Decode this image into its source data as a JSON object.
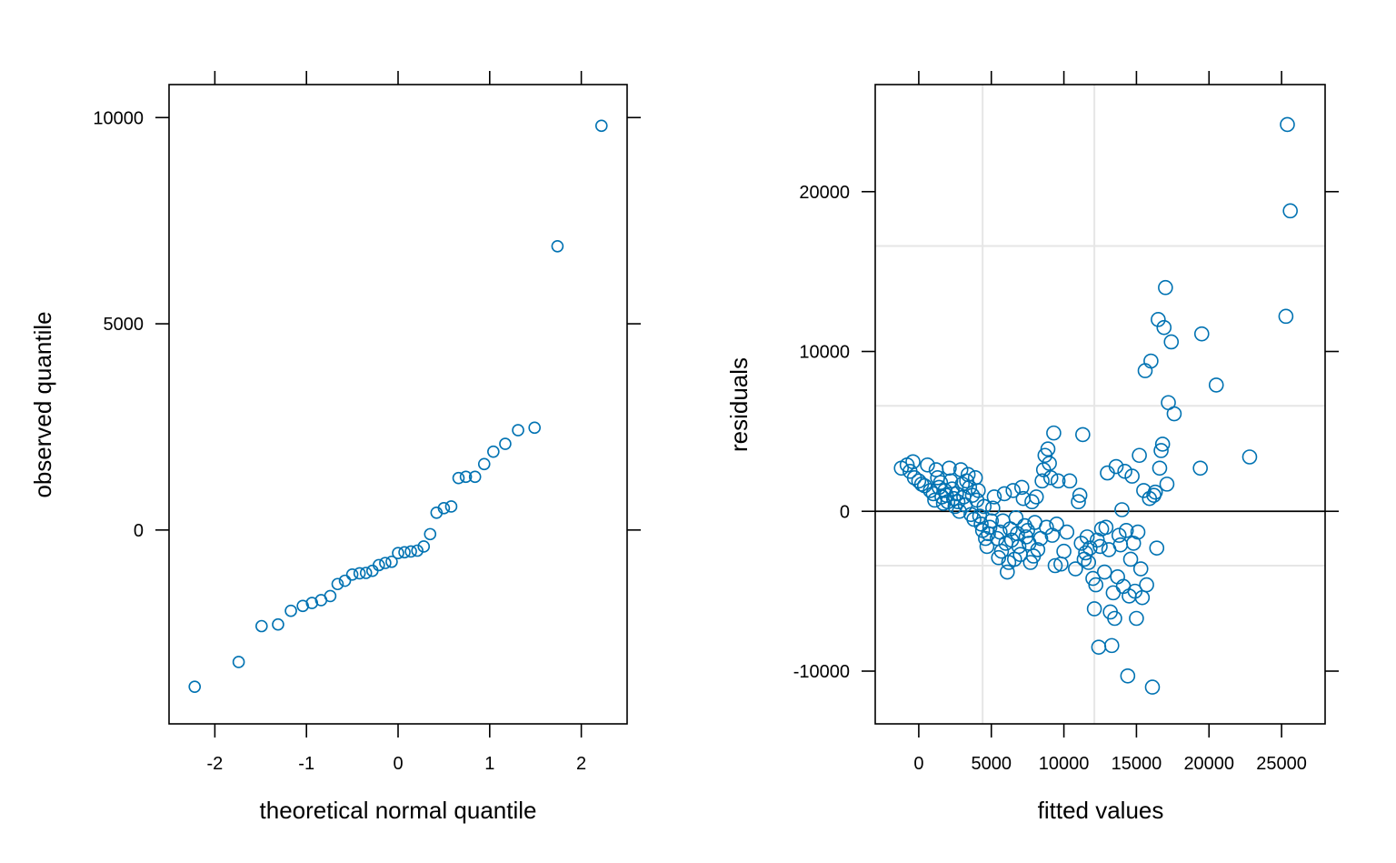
{
  "chart_data": [
    {
      "type": "scatter",
      "title": "",
      "xlabel": "theoretical normal quantile",
      "ylabel": "observed quantile",
      "xlim": [
        -2.5,
        2.5
      ],
      "ylim": [
        -4700,
        10800
      ],
      "xticks": [
        -2,
        -1,
        0,
        1,
        2
      ],
      "xtick_labels": [
        "-2",
        "-1",
        "0",
        "1",
        "2"
      ],
      "yticks": [
        0,
        5000,
        10000
      ],
      "ytick_labels": [
        "0",
        "5000",
        "10000"
      ],
      "grid": false,
      "color": "#0072B2",
      "points": [
        [
          -2.22,
          -3800
        ],
        [
          -1.74,
          -3200
        ],
        [
          -1.49,
          -2330
        ],
        [
          -1.31,
          -2290
        ],
        [
          -1.17,
          -1960
        ],
        [
          -1.04,
          -1840
        ],
        [
          -0.94,
          -1770
        ],
        [
          -0.84,
          -1700
        ],
        [
          -0.74,
          -1600
        ],
        [
          -0.66,
          -1310
        ],
        [
          -0.58,
          -1230
        ],
        [
          -0.5,
          -1080
        ],
        [
          -0.42,
          -1050
        ],
        [
          -0.35,
          -1040
        ],
        [
          -0.28,
          -990
        ],
        [
          -0.21,
          -850
        ],
        [
          -0.14,
          -800
        ],
        [
          -0.07,
          -770
        ],
        [
          0.0,
          -560
        ],
        [
          0.07,
          -540
        ],
        [
          0.14,
          -520
        ],
        [
          0.21,
          -500
        ],
        [
          0.28,
          -400
        ],
        [
          0.35,
          -100
        ],
        [
          0.42,
          420
        ],
        [
          0.5,
          530
        ],
        [
          0.58,
          570
        ],
        [
          0.66,
          1260
        ],
        [
          0.74,
          1290
        ],
        [
          0.84,
          1290
        ],
        [
          0.94,
          1600
        ],
        [
          1.04,
          1900
        ],
        [
          1.17,
          2090
        ],
        [
          1.31,
          2420
        ],
        [
          1.49,
          2480
        ],
        [
          1.74,
          6880
        ],
        [
          2.22,
          9800
        ]
      ]
    },
    {
      "type": "scatter",
      "title": "",
      "xlabel": "fitted values",
      "ylabel": "residuals",
      "xlim": [
        -3000,
        28000
      ],
      "ylim": [
        -13300,
        26700
      ],
      "xticks": [
        0,
        5000,
        10000,
        15000,
        20000,
        25000
      ],
      "xtick_labels": [
        "0",
        "5000",
        "10000",
        "15000",
        "20000",
        "25000"
      ],
      "yticks": [
        -10000,
        0,
        10000,
        20000
      ],
      "ytick_labels": [
        "-10000",
        "0",
        "10000",
        "20000"
      ],
      "grid": true,
      "reference_line_y": 0,
      "color": "#0072B2",
      "points": [
        [
          -1200,
          2700
        ],
        [
          -800,
          2900
        ],
        [
          -600,
          2500
        ],
        [
          -400,
          3100
        ],
        [
          -300,
          2100
        ],
        [
          0,
          1900
        ],
        [
          200,
          1700
        ],
        [
          400,
          1600
        ],
        [
          600,
          2900
        ],
        [
          800,
          1300
        ],
        [
          1000,
          1100
        ],
        [
          1100,
          700
        ],
        [
          1200,
          2600
        ],
        [
          1300,
          2100
        ],
        [
          1400,
          1500
        ],
        [
          1500,
          1800
        ],
        [
          1600,
          900
        ],
        [
          1700,
          500
        ],
        [
          1800,
          1300
        ],
        [
          1900,
          1000
        ],
        [
          2000,
          600
        ],
        [
          2100,
          2700
        ],
        [
          2200,
          1900
        ],
        [
          2300,
          1400
        ],
        [
          2400,
          800
        ],
        [
          2500,
          300
        ],
        [
          2600,
          1100
        ],
        [
          2700,
          600
        ],
        [
          2800,
          0
        ],
        [
          2900,
          2600
        ],
        [
          3000,
          1700
        ],
        [
          3100,
          900
        ],
        [
          3200,
          400
        ],
        [
          3300,
          1900
        ],
        [
          3400,
          2300
        ],
        [
          3500,
          1500
        ],
        [
          3600,
          -200
        ],
        [
          3700,
          1000
        ],
        [
          3800,
          -500
        ],
        [
          3900,
          2100
        ],
        [
          4000,
          700
        ],
        [
          4100,
          1300
        ],
        [
          4200,
          -300
        ],
        [
          4300,
          -800
        ],
        [
          4400,
          -1200
        ],
        [
          4500,
          300
        ],
        [
          4600,
          -1700
        ],
        [
          4700,
          -2200
        ],
        [
          4800,
          -1400
        ],
        [
          4900,
          -1000
        ],
        [
          5000,
          -600
        ],
        [
          5100,
          200
        ],
        [
          5200,
          900
        ],
        [
          5400,
          -1700
        ],
        [
          5500,
          -2900
        ],
        [
          5600,
          -1300
        ],
        [
          5700,
          -2500
        ],
        [
          5800,
          -600
        ],
        [
          5900,
          1100
        ],
        [
          6000,
          -2000
        ],
        [
          6100,
          -3800
        ],
        [
          6200,
          -3200
        ],
        [
          6300,
          -1100
        ],
        [
          6400,
          -1800
        ],
        [
          6500,
          1300
        ],
        [
          6600,
          -3000
        ],
        [
          6700,
          -400
        ],
        [
          6800,
          -1400
        ],
        [
          6900,
          -2200
        ],
        [
          7000,
          -2700
        ],
        [
          7100,
          1500
        ],
        [
          7200,
          800
        ],
        [
          7300,
          -900
        ],
        [
          7400,
          -1600
        ],
        [
          7500,
          -1200
        ],
        [
          7600,
          -2000
        ],
        [
          7700,
          -3200
        ],
        [
          7800,
          600
        ],
        [
          7900,
          -2800
        ],
        [
          8000,
          -700
        ],
        [
          8100,
          900
        ],
        [
          8200,
          -2400
        ],
        [
          8400,
          -1700
        ],
        [
          8500,
          1900
        ],
        [
          8600,
          2600
        ],
        [
          8700,
          3500
        ],
        [
          8800,
          -1000
        ],
        [
          8900,
          3900
        ],
        [
          9000,
          3000
        ],
        [
          9100,
          2100
        ],
        [
          9200,
          -1500
        ],
        [
          9300,
          4900
        ],
        [
          9400,
          -3400
        ],
        [
          9500,
          -800
        ],
        [
          9600,
          1900
        ],
        [
          9800,
          -3300
        ],
        [
          10000,
          -2500
        ],
        [
          10200,
          -1300
        ],
        [
          10400,
          1900
        ],
        [
          10800,
          -3600
        ],
        [
          11000,
          600
        ],
        [
          11100,
          1000
        ],
        [
          11200,
          -2000
        ],
        [
          11300,
          4800
        ],
        [
          11400,
          -3000
        ],
        [
          11500,
          -2600
        ],
        [
          11600,
          -1600
        ],
        [
          11700,
          -3200
        ],
        [
          11800,
          -2300
        ],
        [
          12000,
          -4200
        ],
        [
          12100,
          -6100
        ],
        [
          12200,
          -4600
        ],
        [
          12300,
          -1800
        ],
        [
          12400,
          -8500
        ],
        [
          12500,
          -2200
        ],
        [
          12600,
          -1100
        ],
        [
          12800,
          -3800
        ],
        [
          12900,
          -1000
        ],
        [
          13000,
          2400
        ],
        [
          13100,
          -2400
        ],
        [
          13200,
          -6300
        ],
        [
          13300,
          -8400
        ],
        [
          13400,
          -5100
        ],
        [
          13500,
          -6700
        ],
        [
          13600,
          2800
        ],
        [
          13700,
          -4100
        ],
        [
          13800,
          -1500
        ],
        [
          13900,
          -2100
        ],
        [
          14000,
          100
        ],
        [
          14100,
          -4700
        ],
        [
          14200,
          2500
        ],
        [
          14300,
          -1200
        ],
        [
          14400,
          -10300
        ],
        [
          14500,
          -5300
        ],
        [
          14600,
          -3000
        ],
        [
          14700,
          2200
        ],
        [
          14800,
          -2000
        ],
        [
          14900,
          -5000
        ],
        [
          15000,
          -6700
        ],
        [
          15100,
          -1300
        ],
        [
          15200,
          3500
        ],
        [
          15300,
          -3600
        ],
        [
          15400,
          -5400
        ],
        [
          15500,
          1300
        ],
        [
          15600,
          8800
        ],
        [
          15700,
          -4600
        ],
        [
          15900,
          800
        ],
        [
          16000,
          9400
        ],
        [
          16100,
          -11000
        ],
        [
          16200,
          1000
        ],
        [
          16300,
          1200
        ],
        [
          16400,
          -2300
        ],
        [
          16500,
          12000
        ],
        [
          16600,
          2700
        ],
        [
          16700,
          3800
        ],
        [
          16800,
          4200
        ],
        [
          16900,
          11500
        ],
        [
          17000,
          14000
        ],
        [
          17100,
          1700
        ],
        [
          17200,
          6800
        ],
        [
          17400,
          10600
        ],
        [
          17600,
          6100
        ],
        [
          19400,
          2700
        ],
        [
          19500,
          11100
        ],
        [
          20500,
          7900
        ],
        [
          22800,
          3400
        ],
        [
          25300,
          12200
        ],
        [
          25400,
          24200
        ],
        [
          25600,
          18800
        ]
      ]
    }
  ]
}
